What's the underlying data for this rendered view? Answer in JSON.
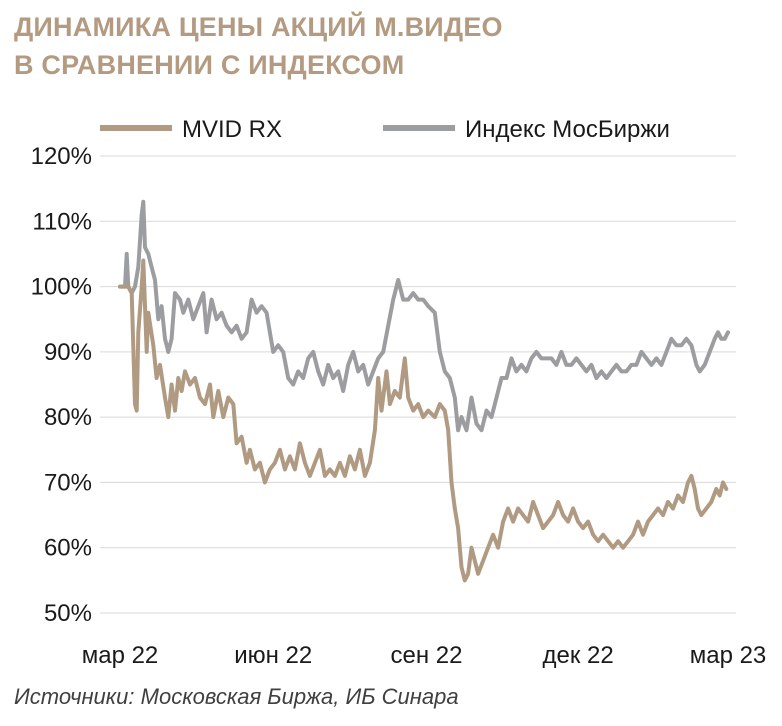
{
  "header": {
    "title_line1": "ДИНАМИКА ЦЕНЫ АКЦИЙ М.ВИДЕО",
    "title_line2": "В СРАВНЕНИИ С ИНДЕКСОМ"
  },
  "footer": {
    "source": "Источники: Московская Биржа, ИБ Синара"
  },
  "chart_data": {
    "type": "line",
    "title": "ДИНАМИКА ЦЕНЫ АКЦИЙ М.ВИДЕО В СРАВНЕНИИ С ИНДЕКСОМ",
    "xlabel": "",
    "ylabel": "",
    "x_ticks": [
      "мар 22",
      "июн 22",
      "сен 22",
      "дек 22",
      "мар 23"
    ],
    "x_tick_dates": [
      "2022-03-01",
      "2022-06-01",
      "2022-09-01",
      "2022-12-01",
      "2023-03-01"
    ],
    "y_ticks": [
      "50%",
      "60%",
      "70%",
      "80%",
      "90%",
      "100%",
      "110%",
      "120%"
    ],
    "ylim": [
      50,
      120
    ],
    "y_unit": "%",
    "xlim": [
      "2022-03-01",
      "2023-03-01"
    ],
    "grid": "horizontal",
    "legend": "top",
    "colors": {
      "mvid": "#b09a82",
      "index": "#9b9da0",
      "grid": "#d9d9d9",
      "title": "#b39a80"
    },
    "series": [
      {
        "name": "MVID RX",
        "points": [
          [
            "2022-03-01",
            100
          ],
          [
            "2022-03-06",
            100
          ],
          [
            "2022-03-08",
            99
          ],
          [
            "2022-03-10",
            82
          ],
          [
            "2022-03-11",
            81
          ],
          [
            "2022-03-12",
            93
          ],
          [
            "2022-03-14",
            100
          ],
          [
            "2022-03-15",
            104
          ],
          [
            "2022-03-17",
            90
          ],
          [
            "2022-03-18",
            96
          ],
          [
            "2022-03-21",
            91
          ],
          [
            "2022-03-23",
            86
          ],
          [
            "2022-03-25",
            88
          ],
          [
            "2022-03-28",
            83
          ],
          [
            "2022-03-30",
            80
          ],
          [
            "2022-04-01",
            85
          ],
          [
            "2022-04-03",
            81
          ],
          [
            "2022-04-05",
            86
          ],
          [
            "2022-04-07",
            84
          ],
          [
            "2022-04-09",
            87
          ],
          [
            "2022-04-12",
            85
          ],
          [
            "2022-04-15",
            86
          ],
          [
            "2022-04-18",
            83
          ],
          [
            "2022-04-21",
            82
          ],
          [
            "2022-04-24",
            85
          ],
          [
            "2022-04-26",
            80
          ],
          [
            "2022-04-29",
            84
          ],
          [
            "2022-05-02",
            80
          ],
          [
            "2022-05-05",
            83
          ],
          [
            "2022-05-08",
            82
          ],
          [
            "2022-05-10",
            76
          ],
          [
            "2022-05-13",
            77
          ],
          [
            "2022-05-16",
            73
          ],
          [
            "2022-05-18",
            75
          ],
          [
            "2022-05-21",
            72
          ],
          [
            "2022-05-24",
            73
          ],
          [
            "2022-05-27",
            70
          ],
          [
            "2022-05-30",
            72
          ],
          [
            "2022-06-02",
            73
          ],
          [
            "2022-06-05",
            75
          ],
          [
            "2022-06-08",
            72
          ],
          [
            "2022-06-11",
            74
          ],
          [
            "2022-06-14",
            72
          ],
          [
            "2022-06-17",
            76
          ],
          [
            "2022-06-20",
            73
          ],
          [
            "2022-06-23",
            71
          ],
          [
            "2022-06-26",
            73
          ],
          [
            "2022-06-29",
            75
          ],
          [
            "2022-07-02",
            71
          ],
          [
            "2022-07-05",
            72
          ],
          [
            "2022-07-08",
            71
          ],
          [
            "2022-07-11",
            73
          ],
          [
            "2022-07-14",
            71
          ],
          [
            "2022-07-17",
            74
          ],
          [
            "2022-07-20",
            72
          ],
          [
            "2022-07-23",
            75
          ],
          [
            "2022-07-26",
            71
          ],
          [
            "2022-07-29",
            73
          ],
          [
            "2022-08-01",
            78
          ],
          [
            "2022-08-03",
            86
          ],
          [
            "2022-08-05",
            81
          ],
          [
            "2022-08-08",
            87
          ],
          [
            "2022-08-10",
            82
          ],
          [
            "2022-08-13",
            84
          ],
          [
            "2022-08-16",
            83
          ],
          [
            "2022-08-19",
            89
          ],
          [
            "2022-08-21",
            83
          ],
          [
            "2022-08-24",
            81
          ],
          [
            "2022-08-27",
            82
          ],
          [
            "2022-08-30",
            80
          ],
          [
            "2022-09-02",
            81
          ],
          [
            "2022-09-06",
            80
          ],
          [
            "2022-09-09",
            82
          ],
          [
            "2022-09-12",
            81
          ],
          [
            "2022-09-14",
            78
          ],
          [
            "2022-09-16",
            70
          ],
          [
            "2022-09-18",
            66
          ],
          [
            "2022-09-20",
            63
          ],
          [
            "2022-09-22",
            57
          ],
          [
            "2022-09-24",
            55
          ],
          [
            "2022-09-26",
            56
          ],
          [
            "2022-09-28",
            60
          ],
          [
            "2022-09-30",
            58
          ],
          [
            "2022-10-02",
            56
          ],
          [
            "2022-10-05",
            58
          ],
          [
            "2022-10-08",
            60
          ],
          [
            "2022-10-11",
            62
          ],
          [
            "2022-10-14",
            60
          ],
          [
            "2022-10-17",
            64
          ],
          [
            "2022-10-20",
            66
          ],
          [
            "2022-10-23",
            64
          ],
          [
            "2022-10-26",
            66
          ],
          [
            "2022-10-29",
            65
          ],
          [
            "2022-11-01",
            64
          ],
          [
            "2022-11-04",
            67
          ],
          [
            "2022-11-07",
            65
          ],
          [
            "2022-11-10",
            63
          ],
          [
            "2022-11-13",
            64
          ],
          [
            "2022-11-16",
            65
          ],
          [
            "2022-11-19",
            67
          ],
          [
            "2022-11-22",
            65
          ],
          [
            "2022-11-25",
            64
          ],
          [
            "2022-11-28",
            66
          ],
          [
            "2022-12-01",
            64
          ],
          [
            "2022-12-04",
            63
          ],
          [
            "2022-12-07",
            64
          ],
          [
            "2022-12-10",
            62
          ],
          [
            "2022-12-13",
            61
          ],
          [
            "2022-12-16",
            62
          ],
          [
            "2022-12-19",
            61
          ],
          [
            "2022-12-22",
            60
          ],
          [
            "2022-12-25",
            61
          ],
          [
            "2022-12-28",
            60
          ],
          [
            "2022-12-31",
            61
          ],
          [
            "2023-01-03",
            62
          ],
          [
            "2023-01-06",
            64
          ],
          [
            "2023-01-09",
            62
          ],
          [
            "2023-01-12",
            64
          ],
          [
            "2023-01-15",
            65
          ],
          [
            "2023-01-18",
            66
          ],
          [
            "2023-01-21",
            65
          ],
          [
            "2023-01-24",
            67
          ],
          [
            "2023-01-27",
            66
          ],
          [
            "2023-01-30",
            68
          ],
          [
            "2023-02-02",
            67
          ],
          [
            "2023-02-05",
            70
          ],
          [
            "2023-02-07",
            71
          ],
          [
            "2023-02-09",
            69
          ],
          [
            "2023-02-11",
            66
          ],
          [
            "2023-02-13",
            65
          ],
          [
            "2023-02-16",
            66
          ],
          [
            "2023-02-19",
            67
          ],
          [
            "2023-02-22",
            69
          ],
          [
            "2023-02-24",
            68
          ],
          [
            "2023-02-26",
            70
          ],
          [
            "2023-02-28",
            69
          ]
        ]
      },
      {
        "name": "Индекс МосБиржи",
        "points": [
          [
            "2022-03-01",
            100
          ],
          [
            "2022-03-04",
            100
          ],
          [
            "2022-03-05",
            105
          ],
          [
            "2022-03-06",
            100
          ],
          [
            "2022-03-08",
            99
          ],
          [
            "2022-03-10",
            100
          ],
          [
            "2022-03-12",
            103
          ],
          [
            "2022-03-14",
            111
          ],
          [
            "2022-03-15",
            113
          ],
          [
            "2022-03-16",
            106
          ],
          [
            "2022-03-18",
            105
          ],
          [
            "2022-03-20",
            103
          ],
          [
            "2022-03-22",
            101
          ],
          [
            "2022-03-24",
            95
          ],
          [
            "2022-03-26",
            97
          ],
          [
            "2022-03-28",
            92
          ],
          [
            "2022-03-30",
            90
          ],
          [
            "2022-04-01",
            92
          ],
          [
            "2022-04-03",
            99
          ],
          [
            "2022-04-06",
            98
          ],
          [
            "2022-04-08",
            96
          ],
          [
            "2022-04-11",
            98
          ],
          [
            "2022-04-14",
            95
          ],
          [
            "2022-04-17",
            97
          ],
          [
            "2022-04-20",
            99
          ],
          [
            "2022-04-22",
            93
          ],
          [
            "2022-04-25",
            98
          ],
          [
            "2022-04-28",
            95
          ],
          [
            "2022-05-01",
            96
          ],
          [
            "2022-05-04",
            94
          ],
          [
            "2022-05-07",
            93
          ],
          [
            "2022-05-10",
            94
          ],
          [
            "2022-05-13",
            92
          ],
          [
            "2022-05-16",
            93
          ],
          [
            "2022-05-19",
            98
          ],
          [
            "2022-05-22",
            96
          ],
          [
            "2022-05-25",
            97
          ],
          [
            "2022-05-28",
            96
          ],
          [
            "2022-06-01",
            90
          ],
          [
            "2022-06-04",
            91
          ],
          [
            "2022-06-07",
            90
          ],
          [
            "2022-06-10",
            86
          ],
          [
            "2022-06-13",
            85
          ],
          [
            "2022-06-16",
            87
          ],
          [
            "2022-06-19",
            86
          ],
          [
            "2022-06-22",
            89
          ],
          [
            "2022-06-25",
            90
          ],
          [
            "2022-06-28",
            87
          ],
          [
            "2022-07-01",
            85
          ],
          [
            "2022-07-04",
            88
          ],
          [
            "2022-07-07",
            86
          ],
          [
            "2022-07-10",
            87
          ],
          [
            "2022-07-13",
            84
          ],
          [
            "2022-07-16",
            88
          ],
          [
            "2022-07-19",
            90
          ],
          [
            "2022-07-22",
            87
          ],
          [
            "2022-07-25",
            88
          ],
          [
            "2022-07-28",
            85
          ],
          [
            "2022-07-31",
            87
          ],
          [
            "2022-08-03",
            89
          ],
          [
            "2022-08-06",
            90
          ],
          [
            "2022-08-09",
            94
          ],
          [
            "2022-08-12",
            98
          ],
          [
            "2022-08-15",
            101
          ],
          [
            "2022-08-18",
            98
          ],
          [
            "2022-08-21",
            98
          ],
          [
            "2022-08-24",
            99
          ],
          [
            "2022-08-27",
            98
          ],
          [
            "2022-08-30",
            98
          ],
          [
            "2022-09-02",
            97
          ],
          [
            "2022-09-06",
            96
          ],
          [
            "2022-09-09",
            90
          ],
          [
            "2022-09-12",
            87
          ],
          [
            "2022-09-15",
            86
          ],
          [
            "2022-09-18",
            83
          ],
          [
            "2022-09-20",
            78
          ],
          [
            "2022-09-22",
            80
          ],
          [
            "2022-09-25",
            78
          ],
          [
            "2022-09-28",
            83
          ],
          [
            "2022-10-01",
            79
          ],
          [
            "2022-10-04",
            78
          ],
          [
            "2022-10-07",
            81
          ],
          [
            "2022-10-10",
            80
          ],
          [
            "2022-10-13",
            83
          ],
          [
            "2022-10-16",
            86
          ],
          [
            "2022-10-19",
            86
          ],
          [
            "2022-10-22",
            89
          ],
          [
            "2022-10-25",
            87
          ],
          [
            "2022-10-28",
            88
          ],
          [
            "2022-10-31",
            87
          ],
          [
            "2022-11-03",
            89
          ],
          [
            "2022-11-06",
            90
          ],
          [
            "2022-11-09",
            89
          ],
          [
            "2022-11-12",
            89
          ],
          [
            "2022-11-15",
            89
          ],
          [
            "2022-11-18",
            88
          ],
          [
            "2022-11-21",
            90
          ],
          [
            "2022-11-24",
            88
          ],
          [
            "2022-11-27",
            88
          ],
          [
            "2022-11-30",
            89
          ],
          [
            "2022-12-03",
            88
          ],
          [
            "2022-12-06",
            87
          ],
          [
            "2022-12-09",
            88
          ],
          [
            "2022-12-12",
            86
          ],
          [
            "2022-12-15",
            87
          ],
          [
            "2022-12-18",
            86
          ],
          [
            "2022-12-21",
            87
          ],
          [
            "2022-12-24",
            88
          ],
          [
            "2022-12-27",
            87
          ],
          [
            "2022-12-30",
            87
          ],
          [
            "2023-01-02",
            88
          ],
          [
            "2023-01-05",
            88
          ],
          [
            "2023-01-08",
            90
          ],
          [
            "2023-01-11",
            89
          ],
          [
            "2023-01-14",
            88
          ],
          [
            "2023-01-17",
            89
          ],
          [
            "2023-01-20",
            88
          ],
          [
            "2023-01-23",
            90
          ],
          [
            "2023-01-26",
            92
          ],
          [
            "2023-01-29",
            91
          ],
          [
            "2023-02-01",
            91
          ],
          [
            "2023-02-04",
            92
          ],
          [
            "2023-02-07",
            91
          ],
          [
            "2023-02-10",
            88
          ],
          [
            "2023-02-12",
            87
          ],
          [
            "2023-02-15",
            88
          ],
          [
            "2023-02-18",
            90
          ],
          [
            "2023-02-21",
            92
          ],
          [
            "2023-02-23",
            93
          ],
          [
            "2023-02-25",
            92
          ],
          [
            "2023-02-27",
            92
          ],
          [
            "2023-03-01",
            93
          ]
        ]
      }
    ]
  }
}
